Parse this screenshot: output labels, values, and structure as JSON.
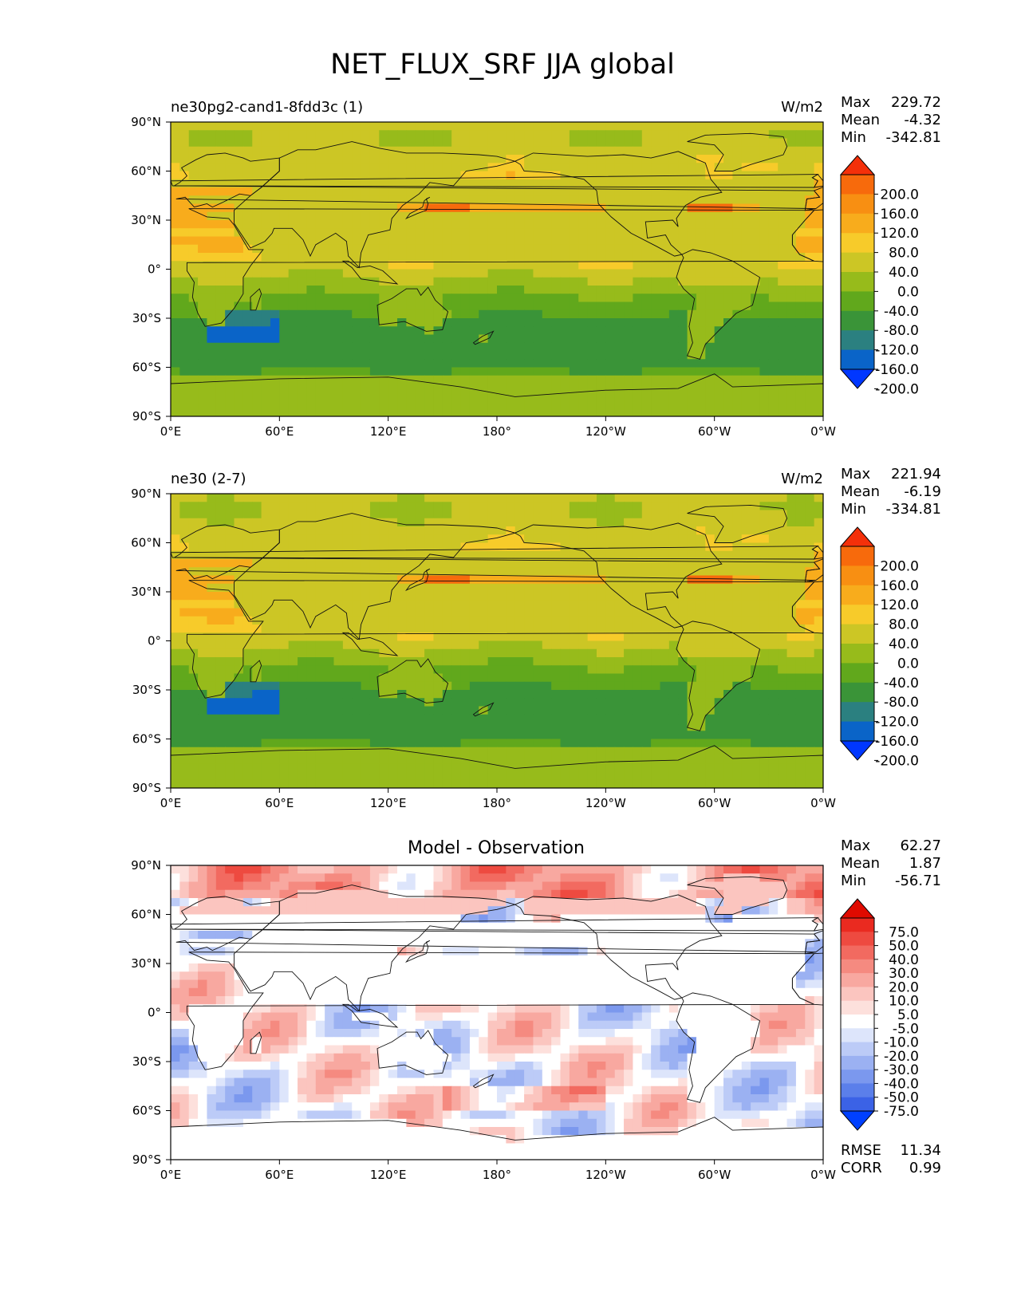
{
  "colors": {
    "ref_levels": [
      "#0037ff",
      "#0a64c8",
      "#2b8080",
      "#3a9438",
      "#61a81c",
      "#97bb1b",
      "#ccc625",
      "#f7cb2a",
      "#f8ac1c",
      "#f88f12",
      "#f76a0c",
      "#f4300a"
    ],
    "diff_levels": [
      "#0040ff",
      "#3b62e6",
      "#5b7fea",
      "#7b98ee",
      "#9bb1f2",
      "#bccbf7",
      "#dde5fb",
      "#ffffff",
      "#fde0dc",
      "#fbc5bf",
      "#f8a8a0",
      "#f58a80",
      "#f26a60",
      "#ee4a40",
      "#ea2a20",
      "#e00a00"
    ]
  },
  "chart_data": {
    "title": "NET_FLUX_SRF JJA global",
    "type": "heatmap",
    "lon_ticks": [
      "0°E",
      "60°E",
      "120°E",
      "180°",
      "120°W",
      "60°W",
      "0°W"
    ],
    "lat_ticks": [
      "90°N",
      "60°N",
      "30°N",
      "0°",
      "30°S",
      "60°S",
      "90°S"
    ],
    "lon_range": [
      0,
      360
    ],
    "lat_range": [
      -90,
      90
    ],
    "panels": [
      {
        "name": "test",
        "left_title": "ne30pg2-cand1-8fdd3c (1)",
        "center_title": "",
        "units": "W/m2",
        "stats": {
          "max_label": "Max",
          "max": "229.72",
          "mean_label": "Mean",
          "mean": "-4.32",
          "min_label": "Min",
          "min": "-342.81"
        },
        "colorbar": {
          "levels": [
            "200.0",
            "160.0",
            "120.0",
            "80.0",
            "40.0",
            "0.0",
            "-40.0",
            "-80.0",
            "-120.0",
            "-160.0",
            "-200.0"
          ]
        },
        "field_scale": 1.0,
        "field_offset": 0
      },
      {
        "name": "reference",
        "left_title": "ne30 (2-7)",
        "center_title": "",
        "units": "W/m2",
        "stats": {
          "max_label": "Max",
          "max": "221.94",
          "mean_label": "Mean",
          "mean": "-6.19",
          "min_label": "Min",
          "min": "-334.81"
        },
        "colorbar": {
          "levels": [
            "200.0",
            "160.0",
            "120.0",
            "80.0",
            "40.0",
            "0.0",
            "-40.0",
            "-80.0",
            "-120.0",
            "-160.0",
            "-200.0"
          ]
        },
        "field_scale": 1.0,
        "field_offset": -2
      },
      {
        "name": "difference",
        "left_title": "",
        "center_title": "Model - Observation",
        "units": "",
        "stats": {
          "max_label": "Max",
          "max": "62.27",
          "mean_label": "Mean",
          "mean": "1.87",
          "min_label": "Min",
          "min": "-56.71"
        },
        "colorbar": {
          "levels": [
            "75.0",
            "50.0",
            "40.0",
            "30.0",
            "20.0",
            "10.0",
            "5.0",
            "-5.0",
            "-10.0",
            "-20.0",
            "-30.0",
            "-40.0",
            "-50.0",
            "-75.0"
          ]
        },
        "extra_stats": {
          "rmse_label": "RMSE",
          "rmse": "11.34",
          "corr_label": "CORR",
          "corr": "0.99"
        }
      }
    ]
  }
}
